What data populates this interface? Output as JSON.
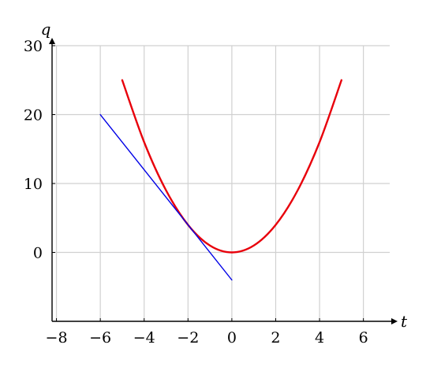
{
  "chart_data": {
    "type": "line",
    "title": "",
    "xlabel": "t",
    "ylabel": "q",
    "xlim": [
      -8.2,
      7.2
    ],
    "ylim": [
      -10,
      30
    ],
    "grid": true,
    "x_ticks": [
      -8,
      -6,
      -4,
      -2,
      0,
      2,
      4,
      6
    ],
    "y_ticks": [
      0,
      10,
      20,
      30
    ],
    "x_tick_labels": [
      "−8",
      "−6",
      "−4",
      "−2",
      "0",
      "2",
      "4",
      "6"
    ],
    "y_tick_labels": [
      "0",
      "10",
      "20",
      "30"
    ],
    "series": [
      {
        "color": "#e8000b",
        "x": [
          -5,
          -4,
          -3,
          -2,
          -1,
          0,
          1,
          2,
          3,
          4,
          5
        ],
        "y": [
          25,
          16,
          9,
          4,
          1,
          0,
          1,
          4,
          9,
          16,
          25
        ]
      },
      {
        "color": "#0000e6",
        "x": [
          -6,
          0
        ],
        "y": [
          20,
          -4
        ]
      }
    ]
  }
}
